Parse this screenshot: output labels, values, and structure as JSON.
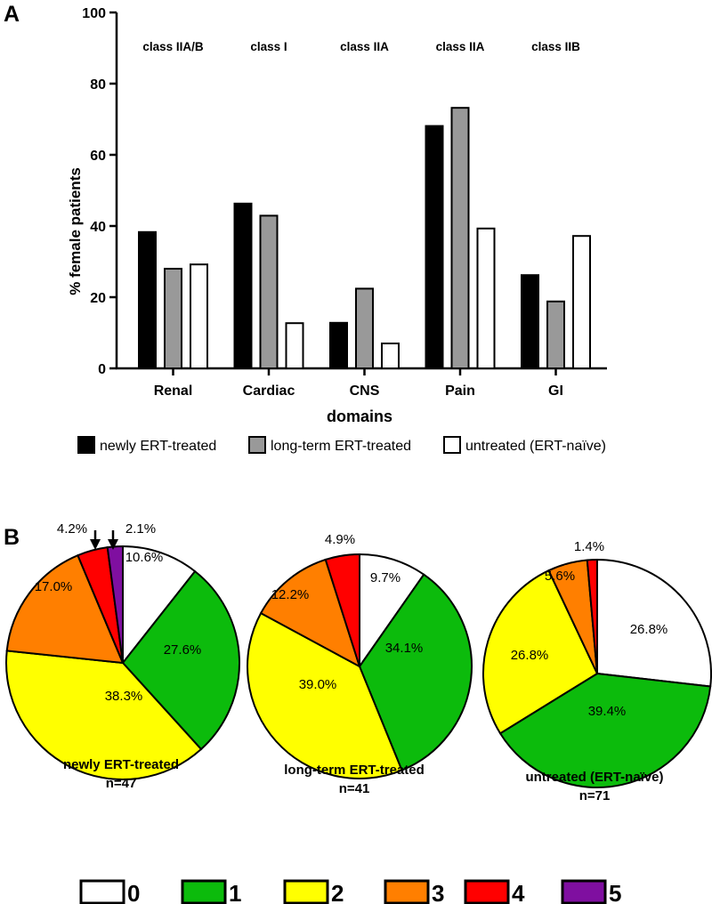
{
  "chart_data": [
    {
      "type": "bar",
      "panel_label": "A",
      "categories": [
        "Renal",
        "Cardiac",
        "CNS",
        "Pain",
        "GI"
      ],
      "class_labels": [
        "class IIA/B",
        "class I",
        "class IIA",
        "class IIA",
        "class IIB"
      ],
      "series": [
        {
          "name": "newly ERT-treated",
          "color": "#000000",
          "values": [
            38.3,
            46.3,
            12.8,
            68.1,
            26.2
          ]
        },
        {
          "name": "long-term ERT-treated",
          "color": "#999999",
          "values": [
            28.0,
            42.9,
            22.4,
            73.2,
            18.8
          ]
        },
        {
          "name": "untreated (ERT-naïve)",
          "color": "#ffffff",
          "values": [
            29.2,
            12.7,
            7.0,
            39.3,
            37.2
          ]
        }
      ],
      "xlabel": "domains",
      "ylabel": "% female patients",
      "ylim": [
        0,
        100
      ],
      "yticks": [
        0,
        20,
        40,
        60,
        80,
        100
      ],
      "grid": false,
      "legend": "bottom"
    },
    {
      "type": "pie",
      "panel_label": "B",
      "charts": [
        {
          "title": "newly ERT-treated",
          "n_label": "n=47",
          "slices": [
            {
              "category": "0",
              "value": 10.6,
              "label": "10.6%"
            },
            {
              "category": "1",
              "value": 27.6,
              "label": "27.6%"
            },
            {
              "category": "2",
              "value": 38.3,
              "label": "38.3%"
            },
            {
              "category": "3",
              "value": 17.0,
              "label": "17.0%"
            },
            {
              "category": "4",
              "value": 4.2,
              "label": "4.2%"
            },
            {
              "category": "5",
              "value": 2.1,
              "label": "2.1%"
            }
          ]
        },
        {
          "title": "long-term ERT-treated",
          "n_label": "n=41",
          "slices": [
            {
              "category": "0",
              "value": 9.7,
              "label": "9.7%"
            },
            {
              "category": "1",
              "value": 34.1,
              "label": "34.1%"
            },
            {
              "category": "2",
              "value": 39.0,
              "label": "39.0%"
            },
            {
              "category": "3",
              "value": 12.2,
              "label": "12.2%"
            },
            {
              "category": "4",
              "value": 4.9,
              "label": "4.9%"
            }
          ]
        },
        {
          "title": "untreated (ERT-naïve)",
          "n_label": "n=71",
          "slices": [
            {
              "category": "0",
              "value": 26.8,
              "label": "26.8%"
            },
            {
              "category": "1",
              "value": 39.4,
              "label": "39.4%"
            },
            {
              "category": "2",
              "value": 26.8,
              "label": "26.8%"
            },
            {
              "category": "3",
              "value": 5.6,
              "label": "5.6%"
            },
            {
              "category": "4",
              "value": 1.4,
              "label": "1.4%"
            }
          ]
        }
      ],
      "legend": [
        {
          "category": "0",
          "color": "#ffffff"
        },
        {
          "category": "1",
          "color": "#0cbb0c"
        },
        {
          "category": "2",
          "color": "#ffff00"
        },
        {
          "category": "3",
          "color": "#ff7f00"
        },
        {
          "category": "4",
          "color": "#ff0000"
        },
        {
          "category": "5",
          "color": "#7f0fa0"
        }
      ]
    }
  ]
}
